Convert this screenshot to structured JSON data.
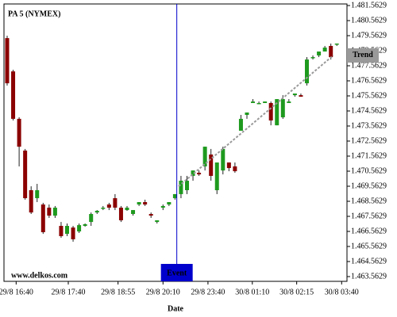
{
  "chart_data": {
    "type": "candlestick",
    "title": "PA 5 (NYMEX)",
    "watermark": "www.delkos.com",
    "x_label": "Date",
    "up_color": "#1e9a1e",
    "down_color": "#8b0000",
    "xlim": [
      -0.53,
      56.69
    ],
    "xticks": [
      {
        "value": 1.5,
        "label": "29/8 16:40"
      },
      {
        "value": 10.2,
        "label": "29/8 17:40"
      },
      {
        "value": 18.5,
        "label": "29/8 18:55"
      },
      {
        "value": 26,
        "label": "29/8 20:10"
      },
      {
        "value": 33.5,
        "label": "29/8 23:40"
      },
      {
        "value": 40.9,
        "label": "30/8 01:10"
      },
      {
        "value": 48.3,
        "label": "30/8 02:15"
      },
      {
        "value": 55.8,
        "label": "30/8 03:40"
      }
    ],
    "ylim": [
      1.4632471,
      1.4816682
    ],
    "yticks": [
      {
        "value": 1.4815629,
        "label": "1.481.5629"
      },
      {
        "value": 1.4805629,
        "label": "1.480.5629"
      },
      {
        "value": 1.4795629,
        "label": "1.479.5629"
      },
      {
        "value": 1.4785629,
        "label": "1.478.5629"
      },
      {
        "value": 1.4775629,
        "label": "1.477.5629"
      },
      {
        "value": 1.4765629,
        "label": "1.476.5629"
      },
      {
        "value": 1.4755629,
        "label": "1.475.5629"
      },
      {
        "value": 1.4745629,
        "label": "1.474.5629"
      },
      {
        "value": 1.4735629,
        "label": "1.473.5629"
      },
      {
        "value": 1.4725629,
        "label": "1.472.5629"
      },
      {
        "value": 1.4715629,
        "label": "1.471.5629"
      },
      {
        "value": 1.4705629,
        "label": "1.470.5629"
      },
      {
        "value": 1.4695629,
        "label": "1.469.5629"
      },
      {
        "value": 1.4685629,
        "label": "1.468.5629"
      },
      {
        "value": 1.4675629,
        "label": "1.467.5629"
      },
      {
        "value": 1.4665629,
        "label": "1.466.5629"
      },
      {
        "value": 1.4655629,
        "label": "1.465.5629"
      },
      {
        "value": 1.4645629,
        "label": "1.464.5629"
      },
      {
        "value": 1.4635629,
        "label": "1.463.5629"
      }
    ],
    "open": [
      1.4794,
      1.47719,
      1.47404,
      1.47193,
      1.4693,
      1.46877,
      1.46835,
      1.46814,
      1.46761,
      1.46693,
      1.4664,
      1.46682,
      1.46656,
      1.46693,
      1.46719,
      1.46782,
      1.46814,
      1.46835,
      1.46877,
      1.46814,
      1.46798,
      1.46772,
      1.46835,
      1.46851,
      1.46772,
      1.46719,
      1.46814,
      1.46835,
      1.46877,
      1.46904,
      1.4693,
      1.47025,
      1.47046,
      1.47088,
      1.47167,
      1.4693,
      1.47061,
      1.47114,
      1.47088,
      1.47325,
      1.4743,
      1.47509,
      1.47509,
      1.47509,
      1.47509,
      1.47361,
      1.47414,
      1.47509,
      1.47561,
      1.47561,
      1.4764,
      1.47814,
      1.47825,
      1.47851,
      1.47888,
      1.47904
    ],
    "high": [
      1.47956,
      1.4773,
      1.47414,
      1.47204,
      1.46956,
      1.46972,
      1.46846,
      1.46835,
      1.46825,
      1.46719,
      1.46709,
      1.46693,
      1.46709,
      1.46709,
      1.46782,
      1.46798,
      1.46825,
      1.46846,
      1.46904,
      1.46825,
      1.46825,
      1.46798,
      1.46851,
      1.46867,
      1.46782,
      1.4673,
      1.46835,
      1.46851,
      1.46904,
      1.47025,
      1.47025,
      1.47061,
      1.47061,
      1.47219,
      1.47204,
      1.47114,
      1.47219,
      1.47114,
      1.47114,
      1.4743,
      1.47446,
      1.47535,
      1.47519,
      1.47519,
      1.47519,
      1.47535,
      1.47561,
      1.47535,
      1.47572,
      1.47572,
      1.47814,
      1.47825,
      1.47851,
      1.47888,
      1.47904,
      1.47904
    ],
    "low": [
      1.47625,
      1.47393,
      1.47088,
      1.46867,
      1.46772,
      1.46851,
      1.4664,
      1.46746,
      1.46746,
      1.46614,
      1.46625,
      1.46588,
      1.46646,
      1.46688,
      1.46693,
      1.46772,
      1.46798,
      1.46798,
      1.46798,
      1.46719,
      1.46793,
      1.46761,
      1.46825,
      1.46825,
      1.46746,
      1.46709,
      1.46798,
      1.46825,
      1.46867,
      1.46877,
      1.46904,
      1.46993,
      1.47025,
      1.47061,
      1.46993,
      1.46904,
      1.47035,
      1.47056,
      1.47046,
      1.47325,
      1.47404,
      1.47509,
      1.47509,
      1.47509,
      1.47361,
      1.47361,
      1.47404,
      1.47509,
      1.47551,
      1.47551,
      1.47625,
      1.47798,
      1.47814,
      1.47851,
      1.47798,
      1.47888
    ],
    "close": [
      1.4764,
      1.47404,
      1.47219,
      1.46877,
      1.46782,
      1.4693,
      1.46651,
      1.46761,
      1.46814,
      1.46625,
      1.46693,
      1.46604,
      1.46698,
      1.46704,
      1.46772,
      1.46793,
      1.46814,
      1.46814,
      1.46814,
      1.4673,
      1.46814,
      1.46798,
      1.46851,
      1.46835,
      1.46761,
      1.4673,
      1.46825,
      1.46851,
      1.46904,
      1.46993,
      1.46993,
      1.47061,
      1.47035,
      1.47219,
      1.47025,
      1.47114,
      1.47204,
      1.47077,
      1.47056,
      1.47404,
      1.47446,
      1.47519,
      1.47509,
      1.47519,
      1.47393,
      1.47535,
      1.47535,
      1.47519,
      1.47572,
      1.47551,
      1.47798,
      1.47814,
      1.47851,
      1.47877,
      1.47814,
      1.47904
    ],
    "event": {
      "label": "Event",
      "x": 28.3,
      "color": "#0000cc"
    },
    "trend": {
      "label": "Trend",
      "x": [
        28.6,
        54.4
      ],
      "y": [
        1.46956,
        1.47825
      ],
      "color": "#999999"
    }
  }
}
